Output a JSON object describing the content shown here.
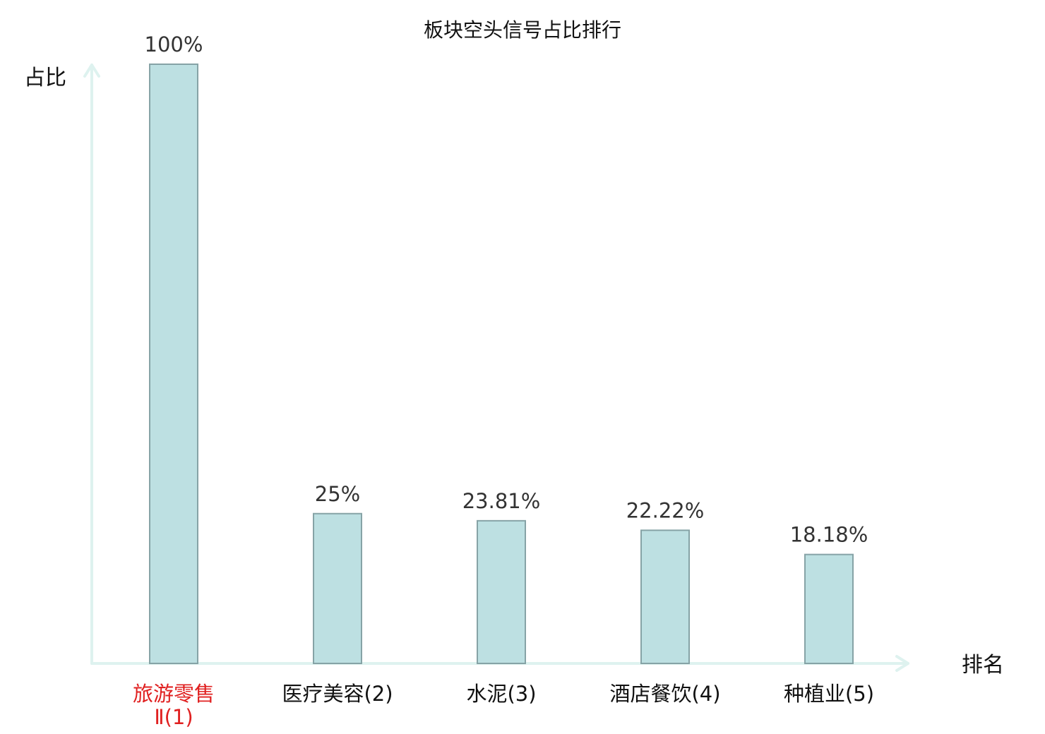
{
  "chart_data": {
    "type": "bar",
    "title": "板块空头信号占比排行",
    "ylabel": "占比",
    "xlabel": "排名",
    "categories": [
      [
        "旅游零售",
        "Ⅱ(1)"
      ],
      [
        "医疗美容(2)"
      ],
      [
        "水泥(3)"
      ],
      [
        "酒店餐饮(4)"
      ],
      [
        "种植业(5)"
      ]
    ],
    "values": [
      100,
      25,
      23.81,
      22.22,
      18.18
    ],
    "value_labels": [
      "100%",
      "25%",
      "23.81%",
      "22.22%",
      "18.18%"
    ],
    "highlight_index": 0,
    "ylim": [
      0,
      100
    ],
    "grid": false,
    "colors": {
      "bar_fill": "#bde0e2",
      "bar_stroke": "#86a3a6",
      "axis": "#def2ef",
      "highlight_text": "#e02020"
    }
  }
}
